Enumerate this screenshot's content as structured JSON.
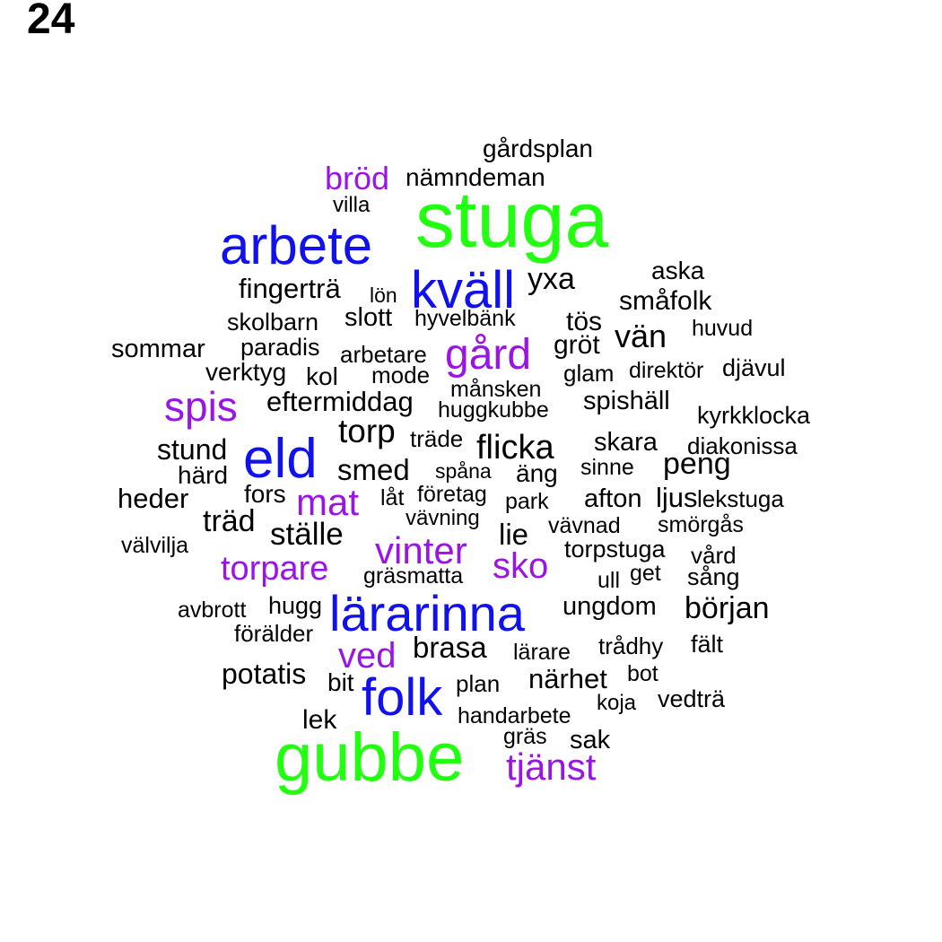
{
  "page_number": "24",
  "colors": {
    "tier1": "#22ff11",
    "tier2": "#1111ee",
    "tier3": "#9a14e6",
    "tier4": "#000000"
  },
  "words": [
    {
      "text": "stuga",
      "tier": 1
    },
    {
      "text": "gubbe",
      "tier": 1
    },
    {
      "text": "arbete",
      "tier": 2
    },
    {
      "text": "kväll",
      "tier": 2
    },
    {
      "text": "eld",
      "tier": 2
    },
    {
      "text": "lärarinna",
      "tier": 2
    },
    {
      "text": "folk",
      "tier": 2
    },
    {
      "text": "bröd",
      "tier": 3
    },
    {
      "text": "gård",
      "tier": 3
    },
    {
      "text": "spis",
      "tier": 3
    },
    {
      "text": "mat",
      "tier": 3
    },
    {
      "text": "vinter",
      "tier": 3
    },
    {
      "text": "torpare",
      "tier": 3
    },
    {
      "text": "sko",
      "tier": 3
    },
    {
      "text": "ved",
      "tier": 3
    },
    {
      "text": "tjänst",
      "tier": 3
    },
    {
      "text": "gårdsplan",
      "tier": 4
    },
    {
      "text": "nämndeman",
      "tier": 4
    },
    {
      "text": "villa",
      "tier": 4
    },
    {
      "text": "aska",
      "tier": 4
    },
    {
      "text": "fingerträ",
      "tier": 4
    },
    {
      "text": "yxa",
      "tier": 4
    },
    {
      "text": "lön",
      "tier": 4
    },
    {
      "text": "småfolk",
      "tier": 4
    },
    {
      "text": "skolbarn",
      "tier": 4
    },
    {
      "text": "slott",
      "tier": 4
    },
    {
      "text": "hyvelbänk",
      "tier": 4
    },
    {
      "text": "tös",
      "tier": 4
    },
    {
      "text": "vän",
      "tier": 4
    },
    {
      "text": "huvud",
      "tier": 4
    },
    {
      "text": "sommar",
      "tier": 4
    },
    {
      "text": "paradis",
      "tier": 4
    },
    {
      "text": "arbetare",
      "tier": 4
    },
    {
      "text": "gröt",
      "tier": 4
    },
    {
      "text": "verktyg",
      "tier": 4
    },
    {
      "text": "kol",
      "tier": 4
    },
    {
      "text": "mode",
      "tier": 4
    },
    {
      "text": "glam",
      "tier": 4
    },
    {
      "text": "direktör",
      "tier": 4
    },
    {
      "text": "djävul",
      "tier": 4
    },
    {
      "text": "månsken",
      "tier": 4
    },
    {
      "text": "eftermiddag",
      "tier": 4
    },
    {
      "text": "huggkubbe",
      "tier": 4
    },
    {
      "text": "spishäll",
      "tier": 4
    },
    {
      "text": "kyrkklocka",
      "tier": 4
    },
    {
      "text": "torp",
      "tier": 4
    },
    {
      "text": "träde",
      "tier": 4
    },
    {
      "text": "flicka",
      "tier": 4
    },
    {
      "text": "skara",
      "tier": 4
    },
    {
      "text": "stund",
      "tier": 4
    },
    {
      "text": "diakonissa",
      "tier": 4
    },
    {
      "text": "smed",
      "tier": 4
    },
    {
      "text": "spåna",
      "tier": 4
    },
    {
      "text": "äng",
      "tier": 4
    },
    {
      "text": "sinne",
      "tier": 4
    },
    {
      "text": "peng",
      "tier": 4
    },
    {
      "text": "härd",
      "tier": 4
    },
    {
      "text": "heder",
      "tier": 4
    },
    {
      "text": "fors",
      "tier": 4
    },
    {
      "text": "låt",
      "tier": 4
    },
    {
      "text": "företag",
      "tier": 4
    },
    {
      "text": "park",
      "tier": 4
    },
    {
      "text": "afton",
      "tier": 4
    },
    {
      "text": "ljus",
      "tier": 4
    },
    {
      "text": "lekstuga",
      "tier": 4
    },
    {
      "text": "träd",
      "tier": 4
    },
    {
      "text": "vävning",
      "tier": 4
    },
    {
      "text": "vävnad",
      "tier": 4
    },
    {
      "text": "smörgås",
      "tier": 4
    },
    {
      "text": "ställe",
      "tier": 4
    },
    {
      "text": "lie",
      "tier": 4
    },
    {
      "text": "välvilja",
      "tier": 4
    },
    {
      "text": "torpstuga",
      "tier": 4
    },
    {
      "text": "vård",
      "tier": 4
    },
    {
      "text": "gräsmatta",
      "tier": 4
    },
    {
      "text": "get",
      "tier": 4
    },
    {
      "text": "ull",
      "tier": 4
    },
    {
      "text": "sång",
      "tier": 4
    },
    {
      "text": "hugg",
      "tier": 4
    },
    {
      "text": "avbrott",
      "tier": 4
    },
    {
      "text": "ungdom",
      "tier": 4
    },
    {
      "text": "början",
      "tier": 4
    },
    {
      "text": "förälder",
      "tier": 4
    },
    {
      "text": "brasa",
      "tier": 4
    },
    {
      "text": "lärare",
      "tier": 4
    },
    {
      "text": "trådhy",
      "tier": 4
    },
    {
      "text": "fält",
      "tier": 4
    },
    {
      "text": "potatis",
      "tier": 4
    },
    {
      "text": "bit",
      "tier": 4
    },
    {
      "text": "plan",
      "tier": 4
    },
    {
      "text": "närhet",
      "tier": 4
    },
    {
      "text": "bot",
      "tier": 4
    },
    {
      "text": "koja",
      "tier": 4
    },
    {
      "text": "vedträ",
      "tier": 4
    },
    {
      "text": "lek",
      "tier": 4
    },
    {
      "text": "handarbete",
      "tier": 4
    },
    {
      "text": "gräs",
      "tier": 4
    },
    {
      "text": "sak",
      "tier": 4
    }
  ]
}
